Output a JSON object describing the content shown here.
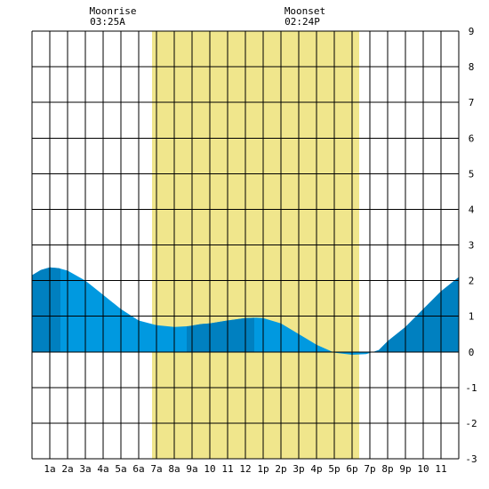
{
  "moon": {
    "rise_label": "Moonrise",
    "rise_time": "03:25A",
    "set_label": "Moonset",
    "set_time": "02:24P"
  },
  "chart_data": {
    "type": "area",
    "title": "",
    "xlabel": "",
    "ylabel": "",
    "x_unit": "hour of day",
    "xlim": [
      0,
      24
    ],
    "ylim": [
      -3,
      9
    ],
    "y_ticks": [
      9,
      8,
      7,
      6,
      5,
      4,
      3,
      2,
      1,
      0,
      -1,
      -2,
      -3
    ],
    "x_tick_labels": [
      "1a",
      "2a",
      "3a",
      "4a",
      "5a",
      "6a",
      "7a",
      "8a",
      "9a",
      "10",
      "11",
      "12",
      "1p",
      "2p",
      "3p",
      "4p",
      "5p",
      "6p",
      "7p",
      "8p",
      "9p",
      "10",
      "11"
    ],
    "grid": true,
    "daylight": {
      "start_hour": 6.75,
      "end_hour": 18.4,
      "color": "#f0e68c"
    },
    "tide_color": "#0099e0",
    "dark_band_color": "#0080c0",
    "dark_bands": [
      [
        0,
        1.6
      ],
      [
        8.7,
        12.5
      ],
      [
        19.3,
        24
      ]
    ],
    "series": [
      {
        "x": [
          0,
          0.5,
          1,
          1.5,
          2,
          3,
          4,
          5,
          6,
          7,
          8,
          8.8,
          9.5,
          10,
          11,
          12,
          12.6,
          13,
          14,
          15,
          16,
          17,
          18,
          18.8,
          19.5,
          20,
          21,
          22,
          23,
          24
        ],
        "values": [
          2.15,
          2.3,
          2.37,
          2.35,
          2.28,
          2.0,
          1.6,
          1.2,
          0.88,
          0.75,
          0.7,
          0.72,
          0.78,
          0.8,
          0.88,
          0.95,
          0.96,
          0.95,
          0.8,
          0.5,
          0.2,
          -0.02,
          -0.08,
          -0.06,
          0.05,
          0.3,
          0.7,
          1.2,
          1.7,
          2.1
        ]
      }
    ]
  }
}
